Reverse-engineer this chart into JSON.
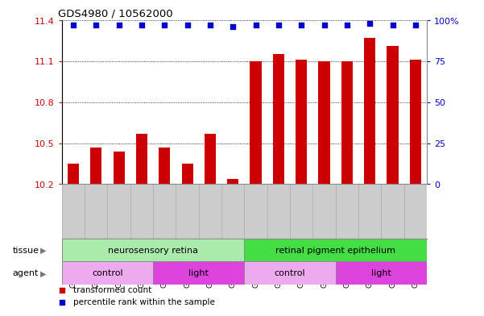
{
  "title": "GDS4980 / 10562000",
  "samples": [
    "GSM928109",
    "GSM928110",
    "GSM928111",
    "GSM928112",
    "GSM928113",
    "GSM928114",
    "GSM928115",
    "GSM928116",
    "GSM928117",
    "GSM928118",
    "GSM928119",
    "GSM928120",
    "GSM928121",
    "GSM928122",
    "GSM928123",
    "GSM928124"
  ],
  "bar_values": [
    10.35,
    10.47,
    10.44,
    10.57,
    10.47,
    10.35,
    10.57,
    10.24,
    11.1,
    11.15,
    11.11,
    11.1,
    11.1,
    11.27,
    11.21,
    11.11
  ],
  "percentile_values": [
    97,
    97,
    97,
    97,
    97,
    97,
    97,
    96,
    97,
    97,
    97,
    97,
    97,
    98,
    97,
    97
  ],
  "bar_color": "#cc0000",
  "dot_color": "#0000cc",
  "ylim_left": [
    10.2,
    11.4
  ],
  "ylim_right": [
    0,
    100
  ],
  "yticks_left": [
    10.2,
    10.5,
    10.8,
    11.1,
    11.4
  ],
  "ytick_labels_left": [
    "10.2",
    "10.5",
    "10.8",
    "11.1",
    "11.4"
  ],
  "yticks_right": [
    0,
    25,
    50,
    75,
    100
  ],
  "ytick_labels_right": [
    "0",
    "25",
    "50",
    "75",
    "100%"
  ],
  "tissue_groups": [
    {
      "label": "neurosensory retina",
      "start": 0,
      "end": 8,
      "color": "#aaeaaa"
    },
    {
      "label": "retinal pigment epithelium",
      "start": 8,
      "end": 16,
      "color": "#44dd44"
    }
  ],
  "agent_groups": [
    {
      "label": "control",
      "start": 0,
      "end": 4,
      "color": "#eeaaee"
    },
    {
      "label": "light",
      "start": 4,
      "end": 8,
      "color": "#dd44dd"
    },
    {
      "label": "control",
      "start": 8,
      "end": 12,
      "color": "#eeaaee"
    },
    {
      "label": "light",
      "start": 12,
      "end": 16,
      "color": "#dd44dd"
    }
  ],
  "legend_items": [
    {
      "label": "transformed count",
      "color": "#cc0000"
    },
    {
      "label": "percentile rank within the sample",
      "color": "#0000cc"
    }
  ],
  "sample_bg_color": "#cccccc",
  "plot_bg_color": "#ffffff"
}
